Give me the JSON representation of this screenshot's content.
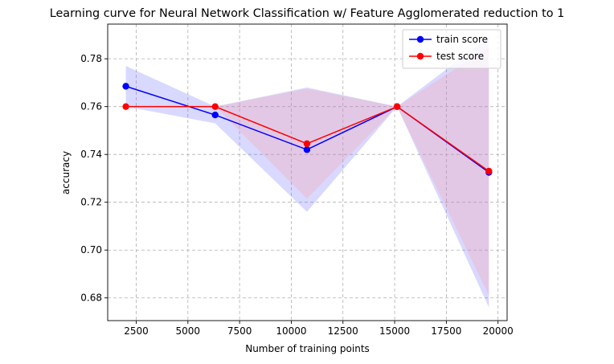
{
  "chart_data": {
    "type": "line",
    "title": "Learning curve for Neural Network Classification w/ Feature Agglomerated reduction to 1",
    "xlabel": "Number of training points",
    "ylabel": "accuracy",
    "xlim": [
      1120,
      20440
    ],
    "ylim": [
      0.6705,
      0.7945
    ],
    "xticks": [
      2500,
      5000,
      7500,
      10000,
      12500,
      15000,
      17500,
      20000
    ],
    "yticks": [
      0.68,
      0.7,
      0.72,
      0.74,
      0.76,
      0.78
    ],
    "ytick_labels": [
      "0.68",
      "0.70",
      "0.72",
      "0.74",
      "0.76",
      "0.78"
    ],
    "grid": true,
    "legend_position": "top-right",
    "x": [
      1998,
      6318,
      10758,
      15118,
      19558
    ],
    "series": [
      {
        "name": "train score",
        "color": "#0000ff",
        "fill_color": "#6666ff",
        "values": [
          0.7685,
          0.7565,
          0.742,
          0.76,
          0.7325
        ],
        "band_lower": [
          0.76,
          0.753,
          0.716,
          0.76,
          0.676
        ],
        "band_upper": [
          0.777,
          0.76,
          0.768,
          0.76,
          0.789
        ]
      },
      {
        "name": "test score",
        "color": "#ff0000",
        "fill_color": "#ff9999",
        "values": [
          0.76,
          0.76,
          0.7445,
          0.76,
          0.733
        ],
        "band_lower": [
          0.76,
          0.76,
          0.7215,
          0.76,
          0.681
        ],
        "band_upper": [
          0.76,
          0.76,
          0.7675,
          0.76,
          0.785
        ]
      }
    ]
  }
}
